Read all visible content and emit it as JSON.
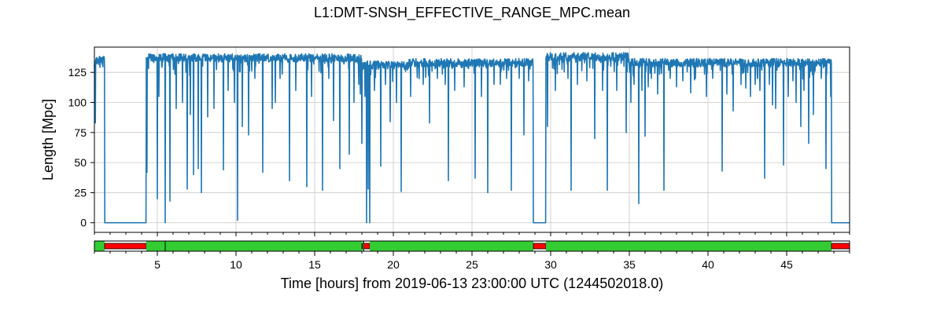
{
  "chart_data": {
    "type": "line",
    "title": "L1:DMT-SNSH_EFFECTIVE_RANGE_MPC.mean",
    "xlabel": "Time [hours] from 2019-06-13 23:00:00 UTC (1244502018.0)",
    "ylabel": "Length [Mpc]",
    "xlim": [
      1,
      49
    ],
    "ylim": [
      -8,
      146
    ],
    "grid": true,
    "x_ticks": [
      5,
      10,
      15,
      20,
      25,
      30,
      35,
      40,
      45
    ],
    "x_tick_labels": [
      "5",
      "10",
      "15",
      "20",
      "25",
      "30",
      "35",
      "40",
      "45"
    ],
    "y_ticks": [
      0,
      25,
      50,
      75,
      100,
      125
    ],
    "y_tick_labels": [
      "0",
      "25",
      "50",
      "75",
      "100",
      "125"
    ],
    "line_color": "#1f77b4",
    "series": [
      {
        "segments": [
          {
            "start": 1.0,
            "end": 1.65,
            "level": 135
          },
          {
            "start": 1.65,
            "end": 4.3,
            "level": 0
          },
          {
            "start": 4.3,
            "end": 18.0,
            "level": 137
          },
          {
            "start": 18.0,
            "end": 21.0,
            "level": 131
          },
          {
            "start": 21.0,
            "end": 28.9,
            "level": 133
          },
          {
            "start": 28.9,
            "end": 29.7,
            "level": 0
          },
          {
            "start": 29.7,
            "end": 35.0,
            "level": 138
          },
          {
            "start": 35.0,
            "end": 47.85,
            "level": 133
          },
          {
            "start": 47.85,
            "end": 49.0,
            "level": 0
          }
        ],
        "dips": [
          [
            1.05,
            83
          ],
          [
            4.35,
            42
          ],
          [
            5.0,
            20
          ],
          [
            5.1,
            105
          ],
          [
            5.5,
            0
          ],
          [
            5.8,
            18
          ],
          [
            6.2,
            95
          ],
          [
            6.6,
            100
          ],
          [
            6.9,
            28
          ],
          [
            7.1,
            90
          ],
          [
            7.3,
            40
          ],
          [
            7.6,
            45
          ],
          [
            7.8,
            25
          ],
          [
            8.2,
            88
          ],
          [
            8.6,
            95
          ],
          [
            9.2,
            44
          ],
          [
            9.5,
            110
          ],
          [
            9.9,
            100
          ],
          [
            10.1,
            2
          ],
          [
            10.4,
            80
          ],
          [
            10.8,
            73
          ],
          [
            11.2,
            120
          ],
          [
            11.7,
            42
          ],
          [
            12.3,
            95
          ],
          [
            12.5,
            100
          ],
          [
            12.8,
            120
          ],
          [
            13.4,
            35
          ],
          [
            13.8,
            110
          ],
          [
            14.5,
            30
          ],
          [
            14.8,
            105
          ],
          [
            15.5,
            27
          ],
          [
            15.9,
            120
          ],
          [
            16.2,
            85
          ],
          [
            16.6,
            45
          ],
          [
            17.2,
            57
          ],
          [
            17.5,
            100
          ],
          [
            17.8,
            115
          ],
          [
            17.9,
            107
          ],
          [
            18.0,
            66
          ],
          [
            18.2,
            105
          ],
          [
            18.3,
            0
          ],
          [
            18.4,
            28
          ],
          [
            18.5,
            0
          ],
          [
            18.8,
            110
          ],
          [
            19.2,
            47
          ],
          [
            19.5,
            115
          ],
          [
            19.8,
            84
          ],
          [
            20.2,
            100
          ],
          [
            20.5,
            26
          ],
          [
            21.1,
            105
          ],
          [
            21.9,
            115
          ],
          [
            22.3,
            83
          ],
          [
            22.8,
            120
          ],
          [
            23.3,
            115
          ],
          [
            23.5,
            35
          ],
          [
            23.9,
            110
          ],
          [
            24.5,
            113
          ],
          [
            25.2,
            37
          ],
          [
            25.6,
            105
          ],
          [
            26.0,
            25
          ],
          [
            26.4,
            115
          ],
          [
            26.8,
            115
          ],
          [
            27.2,
            120
          ],
          [
            27.5,
            27
          ],
          [
            28.0,
            120
          ],
          [
            28.3,
            73
          ],
          [
            28.6,
            118
          ],
          [
            29.8,
            80
          ],
          [
            30.3,
            110
          ],
          [
            31.1,
            120
          ],
          [
            31.3,
            27
          ],
          [
            31.7,
            115
          ],
          [
            32.3,
            118
          ],
          [
            32.8,
            70
          ],
          [
            33.3,
            110
          ],
          [
            33.6,
            27
          ],
          [
            34.2,
            110
          ],
          [
            34.8,
            75
          ],
          [
            35.1,
            100
          ],
          [
            35.3,
            115
          ],
          [
            35.6,
            16
          ],
          [
            35.8,
            110
          ],
          [
            36.0,
            72
          ],
          [
            36.2,
            113
          ],
          [
            36.4,
            120
          ],
          [
            36.8,
            107
          ],
          [
            37.2,
            27
          ],
          [
            37.6,
            120
          ],
          [
            38.0,
            113
          ],
          [
            38.4,
            118
          ],
          [
            38.9,
            108
          ],
          [
            39.2,
            120
          ],
          [
            39.9,
            105
          ],
          [
            40.3,
            120
          ],
          [
            40.9,
            43
          ],
          [
            41.2,
            107
          ],
          [
            41.6,
            93
          ],
          [
            42.1,
            115
          ],
          [
            42.4,
            112
          ],
          [
            42.7,
            105
          ],
          [
            43.0,
            115
          ],
          [
            43.3,
            110
          ],
          [
            43.6,
            37
          ],
          [
            43.9,
            115
          ],
          [
            44.1,
            98
          ],
          [
            44.3,
            95
          ],
          [
            44.8,
            48
          ],
          [
            45.1,
            105
          ],
          [
            45.4,
            118
          ],
          [
            45.6,
            100
          ],
          [
            45.9,
            80
          ],
          [
            46.1,
            110
          ],
          [
            46.4,
            66
          ],
          [
            46.7,
            90
          ],
          [
            47.2,
            120
          ],
          [
            47.5,
            45
          ],
          [
            47.8,
            105
          ]
        ]
      }
    ],
    "state_bar": [
      {
        "start": 1.0,
        "end": 1.65,
        "state": "on"
      },
      {
        "start": 1.65,
        "end": 4.3,
        "state": "off"
      },
      {
        "start": 4.3,
        "end": 18.0,
        "state": "on"
      },
      {
        "start": 18.0,
        "end": 18.5,
        "state": "off"
      },
      {
        "start": 18.5,
        "end": 28.9,
        "state": "on"
      },
      {
        "start": 28.9,
        "end": 29.7,
        "state": "off"
      },
      {
        "start": 29.7,
        "end": 47.85,
        "state": "on"
      },
      {
        "start": 47.85,
        "end": 49.0,
        "state": "off"
      }
    ],
    "state_marks": [
      5.5,
      18.1
    ],
    "state_colors": {
      "on": "#33cc33",
      "off": "#ff0000"
    }
  }
}
